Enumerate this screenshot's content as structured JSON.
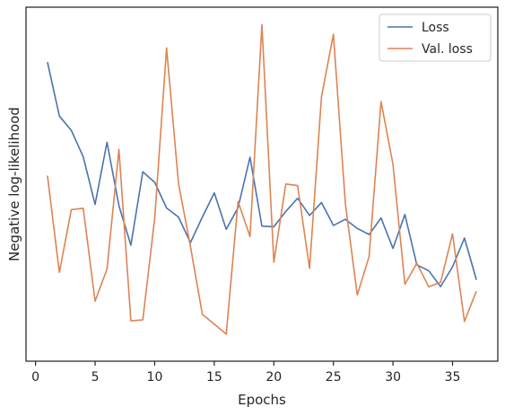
{
  "chart_data": {
    "type": "line",
    "title": "",
    "xlabel": "Epochs",
    "ylabel": "Negative log-likelihood",
    "xlim": [
      -0.8,
      38.8
    ],
    "ylim": [
      0.0,
      1.0
    ],
    "xticks": [
      0,
      5,
      10,
      15,
      20,
      25,
      30,
      35
    ],
    "yticks_shown": false,
    "grid": false,
    "legend_position": "top-right",
    "x": [
      1,
      2,
      3,
      4,
      5,
      6,
      7,
      8,
      9,
      10,
      11,
      12,
      13,
      14,
      15,
      16,
      17,
      18,
      19,
      20,
      21,
      22,
      23,
      24,
      25,
      26,
      27,
      28,
      29,
      30,
      31,
      32,
      33,
      34,
      35,
      36,
      37
    ],
    "series": [
      {
        "name": "Loss",
        "color": "#4c72b0",
        "values": [
          0.883,
          0.716,
          0.672,
          0.59,
          0.443,
          0.635,
          0.439,
          0.317,
          0.544,
          0.511,
          0.432,
          0.404,
          0.325,
          0.404,
          0.479,
          0.366,
          0.433,
          0.589,
          0.376,
          0.374,
          0.421,
          0.462,
          0.409,
          0.449,
          0.378,
          0.397,
          0.369,
          0.35,
          0.401,
          0.307,
          0.412,
          0.256,
          0.238,
          0.189,
          0.25,
          0.339,
          0.21
        ]
      },
      {
        "name": "Val. loss",
        "color": "#dd8452",
        "values": [
          0.532,
          0.233,
          0.427,
          0.431,
          0.144,
          0.243,
          0.613,
          0.083,
          0.086,
          0.401,
          0.927,
          0.508,
          0.313,
          0.103,
          0.073,
          0.042,
          0.452,
          0.344,
          0.999,
          0.264,
          0.506,
          0.501,
          0.245,
          0.776,
          0.969,
          0.447,
          0.163,
          0.282,
          0.761,
          0.567,
          0.196,
          0.261,
          0.188,
          0.202,
          0.352,
          0.081,
          0.175
        ]
      }
    ]
  }
}
